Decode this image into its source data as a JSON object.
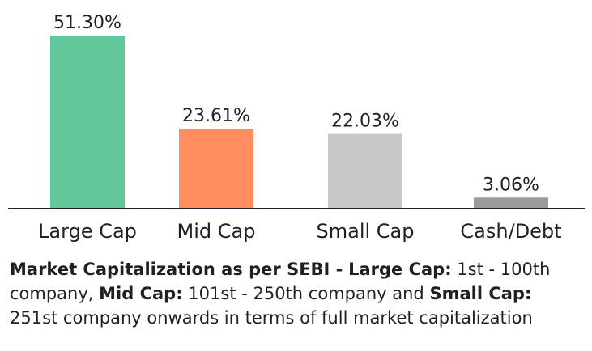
{
  "chart_data": {
    "type": "bar",
    "categories": [
      "Large Cap",
      "Mid Cap",
      "Small Cap",
      "Cash/Debt"
    ],
    "values": [
      51.3,
      23.61,
      22.03,
      3.06
    ],
    "data_labels": [
      "51.30%",
      "23.61%",
      "22.03%",
      "3.06%"
    ],
    "colors": [
      "#63c79c",
      "#ff8d5e",
      "#c8c8c8",
      "#9b9b9b"
    ],
    "ylim": [
      0,
      51.3
    ],
    "grid": false,
    "legend": "none"
  },
  "footnote": {
    "lead": "Market Capitalization as per SEBI -",
    "large_label": "Large Cap:",
    "large_text": "1st - 100th company,",
    "mid_label": "Mid Cap:",
    "mid_text": "101st - 250th company and",
    "small_label": "Small Cap:",
    "small_text": "251st company onwards in terms of full market capitalization"
  }
}
